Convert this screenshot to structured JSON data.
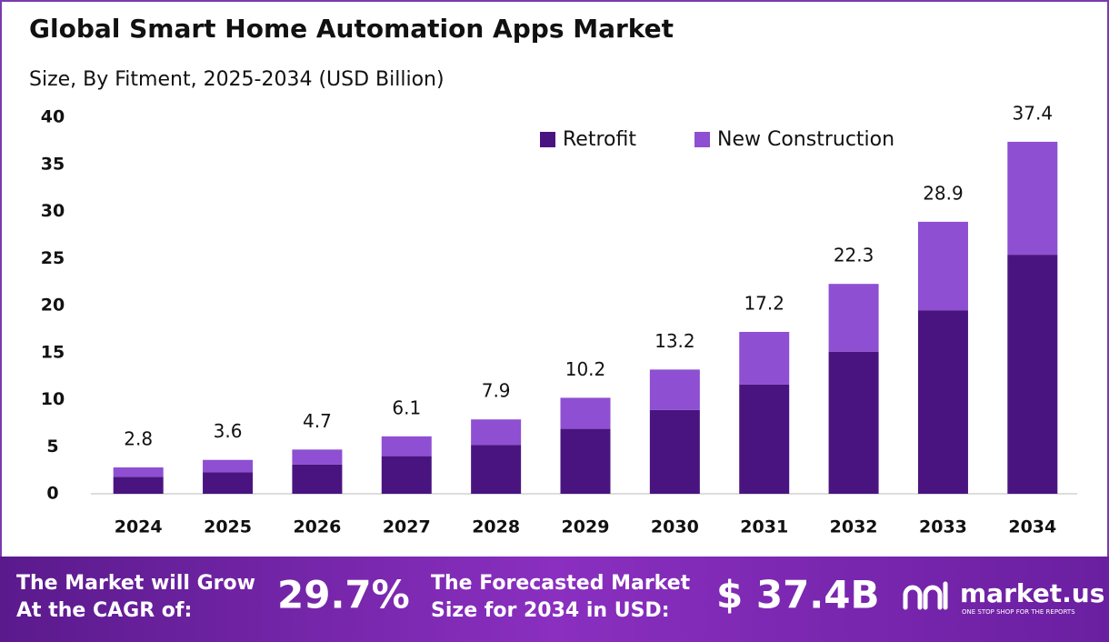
{
  "chart_data": {
    "type": "stacked_bar",
    "title": "Global Smart Home Automation Apps Market",
    "subtitle": "Size, By Fitment, 2025-2034 (USD Billion)",
    "categories": [
      "2024",
      "2025",
      "2026",
      "2027",
      "2028",
      "2029",
      "2030",
      "2031",
      "2032",
      "2033",
      "2034"
    ],
    "series": [
      {
        "name": "Retrofit",
        "color": "#4a1480",
        "values": [
          1.8,
          2.3,
          3.1,
          4.0,
          5.2,
          6.9,
          8.9,
          11.6,
          15.1,
          19.5,
          25.4
        ]
      },
      {
        "name": "New Construction",
        "color": "#8e4fd2",
        "values": [
          1.0,
          1.3,
          1.6,
          2.1,
          2.7,
          3.3,
          4.3,
          5.6,
          7.2,
          9.4,
          12.0
        ]
      }
    ],
    "totals": [
      2.8,
      3.6,
      4.7,
      6.1,
      7.9,
      10.2,
      13.2,
      17.2,
      22.3,
      28.9,
      37.4
    ],
    "ylim": [
      0,
      40
    ],
    "yticks": [
      0,
      5,
      10,
      15,
      20,
      25,
      30,
      35,
      40
    ],
    "grid": false,
    "legend": "upper center"
  },
  "footer": {
    "cagr_label": [
      "The Market will Grow",
      "At the CAGR of:"
    ],
    "cagr_value": "29.7%",
    "forecast_label": [
      "The Forecasted Market",
      "Size for 2034 in USD:"
    ],
    "forecast_value": "$ 37.4B",
    "logo": "market.us",
    "logo_tagline": "ONE STOP SHOP FOR THE REPORTS"
  }
}
